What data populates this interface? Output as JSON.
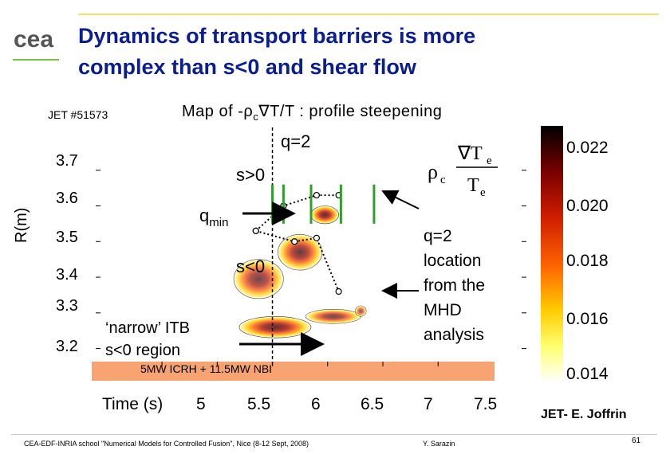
{
  "header": {
    "title_line1": "Dynamics of transport barriers is more",
    "title_line2": "complex than s<0 and shear flow",
    "logo_text": "cea"
  },
  "chart_data": {
    "type": "heatmap",
    "run_label": "JET #51573",
    "title": "Map of -ρc∇T/T : profile steepening",
    "title_pre": "Map of -ρ",
    "title_sub": "c",
    "title_post": "∇T/T : profile steepening",
    "ylabel": "R(m)",
    "xlabel": "Time (s)",
    "xlim": [
      4.4,
      8.3
    ],
    "ylim": [
      3.15,
      3.82
    ],
    "x_ticks": [
      "5",
      "5.5",
      "6",
      "6.5",
      "7",
      "7.5"
    ],
    "y_ticks": [
      "3.7",
      "3.6",
      "3.5",
      "3.4",
      "3.3",
      "3.2"
    ],
    "colorbar": {
      "ticks": [
        "0.022",
        "0.020",
        "0.018",
        "0.016",
        "0.014"
      ],
      "range": [
        0.0135,
        0.0228
      ],
      "colors": [
        "#000000",
        "#7a0000",
        "#d01e00",
        "#ff6600",
        "#ffcc00",
        "#ffff70",
        "#ffffff"
      ]
    },
    "formula_pre": "ρ",
    "formula_sub": "c",
    "formula_num": "∇T",
    "formula_num_sub": "e",
    "formula_den": "T",
    "formula_den_sub": "e",
    "q2_line_time": 6.0,
    "regions": [
      {
        "t0": 5.7,
        "t1": 6.35,
        "r0": 3.23,
        "r1": 3.29,
        "intensity": 0.8
      },
      {
        "t0": 6.3,
        "t1": 6.8,
        "r0": 3.27,
        "r1": 3.31,
        "intensity": 0.7
      },
      {
        "t0": 5.65,
        "t1": 6.1,
        "r0": 3.34,
        "r1": 3.45,
        "intensity": 0.7
      },
      {
        "t0": 6.05,
        "t1": 6.45,
        "r0": 3.42,
        "r1": 3.52,
        "intensity": 0.75
      },
      {
        "t0": 6.35,
        "t1": 6.6,
        "r0": 3.55,
        "r1": 3.6,
        "intensity": 0.8
      },
      {
        "t0": 6.75,
        "t1": 6.85,
        "r0": 3.29,
        "r1": 3.32,
        "intensity": 0.6
      }
    ],
    "qmin_points": [
      {
        "t": 5.85,
        "r": 3.53
      },
      {
        "t": 6.1,
        "r": 3.6
      },
      {
        "t": 6.4,
        "r": 3.63
      },
      {
        "t": 6.6,
        "r": 3.63
      }
    ],
    "q2_points": [
      {
        "t": 5.85,
        "r": 3.53
      },
      {
        "t": 6.2,
        "r": 3.5
      },
      {
        "t": 6.4,
        "r": 3.51
      },
      {
        "t": 6.6,
        "r": 3.36
      }
    ],
    "mhd_marks_t": [
      6.0,
      6.1,
      6.35,
      6.62,
      6.92
    ]
  },
  "annotations": {
    "q2": "q=2",
    "s_pos": "s>0",
    "qmin_q": "q",
    "qmin_sub": "min",
    "s_neg": "s<0",
    "narrow_line1": "‘narrow’ ITB",
    "narrow_line2": "s<0 region",
    "q2loc_1": "q=2",
    "q2loc_2": "location",
    "q2loc_3": "from the",
    "q2loc_4": "MHD",
    "q2loc_5": "analysis",
    "heating": "5MW ICRH + 11.5MW NBI"
  },
  "footer": {
    "left": "CEA-EDF-INRIA school \"Numerical Models for Controlled Fusion\", Nice (8-12 Sept, 2008)",
    "mid": "Y. Sarazin",
    "credit": "JET- E. Joffrin",
    "page": "61"
  }
}
